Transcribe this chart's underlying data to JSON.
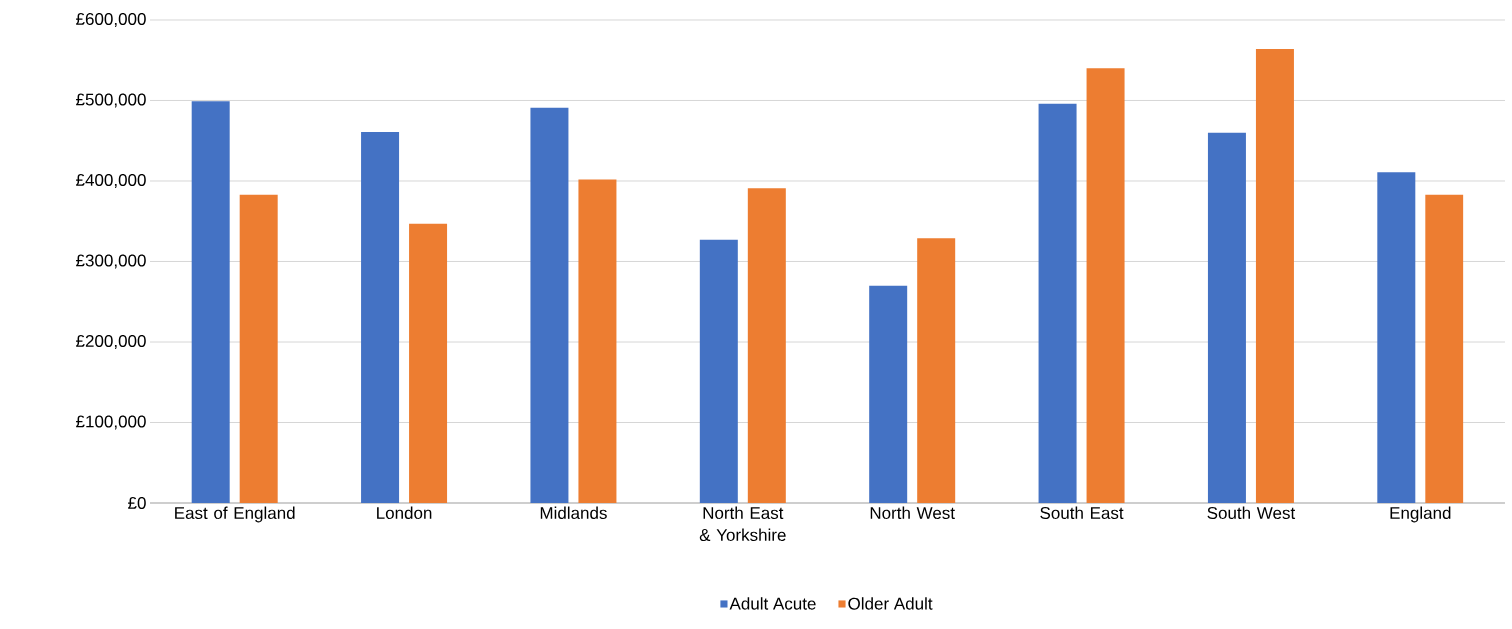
{
  "chart_data": {
    "type": "bar",
    "categories": [
      "East of England",
      "London",
      "Midlands",
      "North East & Yorkshire",
      "North West",
      "South East",
      "South West",
      "England"
    ],
    "series": [
      {
        "name": "Adult Acute",
        "color": "#4472c4",
        "values": [
          499000,
          461000,
          491000,
          327000,
          270000,
          496000,
          460000,
          411000
        ]
      },
      {
        "name": "Older Adult",
        "color": "#ed7d31",
        "values": [
          383000,
          347000,
          402000,
          391000,
          329000,
          540000,
          564000,
          383000
        ]
      }
    ],
    "ylim": [
      0,
      600000
    ],
    "yticks": [
      {
        "value": 0,
        "label": "£0"
      },
      {
        "value": 100000,
        "label": "£100,000"
      },
      {
        "value": 200000,
        "label": "£200,000"
      },
      {
        "value": 300000,
        "label": "£300,000"
      },
      {
        "value": 400000,
        "label": "£400,000"
      },
      {
        "value": 500000,
        "label": "£500,000"
      },
      {
        "value": 600000,
        "label": "£600,000"
      }
    ],
    "grid": "y",
    "legend": "bottom"
  }
}
